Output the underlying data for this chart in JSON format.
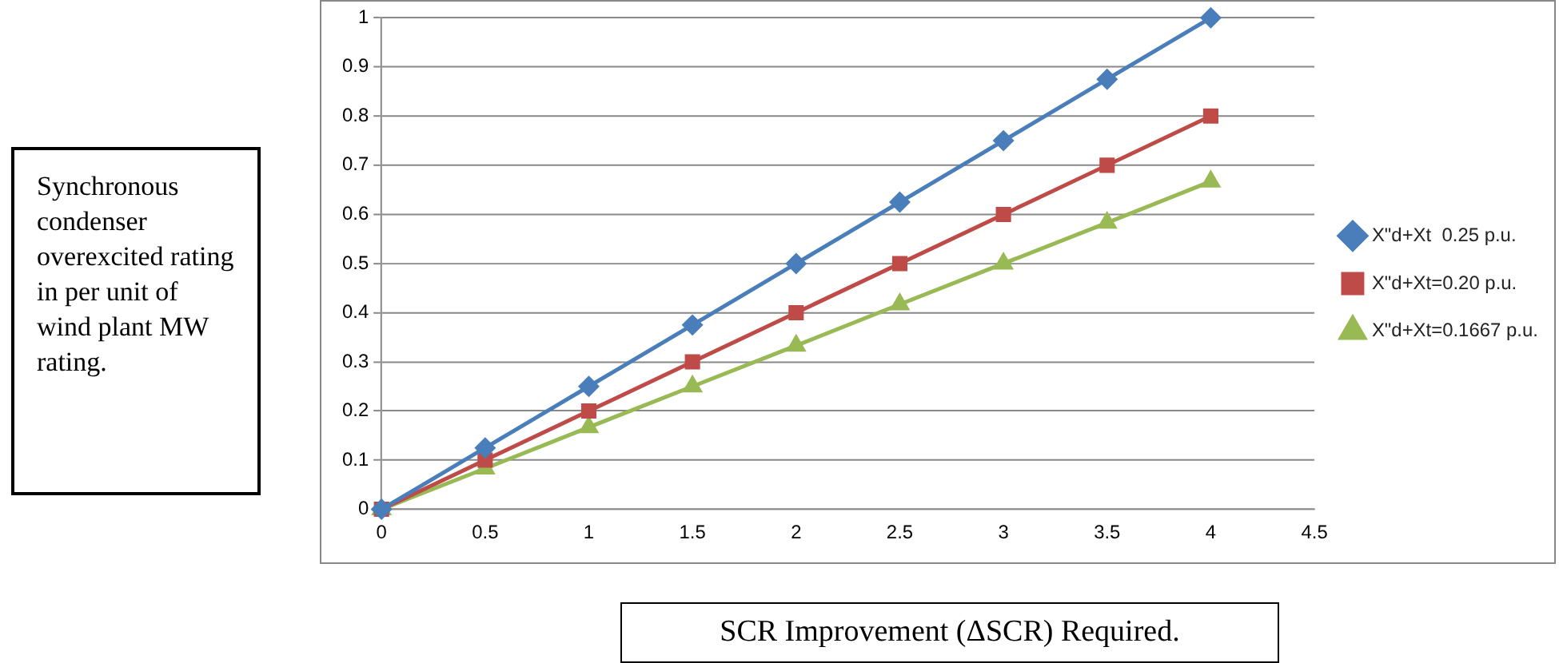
{
  "chart_data": {
    "type": "line",
    "xlabel": "SCR Improvement (ΔSCR) Required.",
    "ylabel": "Synchronous condenser overexcited rating in per unit of wind plant MW rating.",
    "x": [
      0,
      0.5,
      1,
      1.5,
      2,
      2.5,
      3,
      3.5,
      4
    ],
    "series": [
      {
        "name": "X\"d+Xt  0.25 p.u.",
        "color": "#4a7ebb",
        "marker": "diamond",
        "values": [
          0,
          0.125,
          0.25,
          0.375,
          0.5,
          0.625,
          0.75,
          0.875,
          1
        ]
      },
      {
        "name": "X\"d+Xt=0.20 p.u.",
        "color": "#be4b48",
        "marker": "square",
        "values": [
          0,
          0.1,
          0.2,
          0.3,
          0.4,
          0.5,
          0.6,
          0.7,
          0.8
        ]
      },
      {
        "name": "X\"d+Xt=0.1667 p.u.",
        "color": "#98b954",
        "marker": "triangle",
        "values": [
          0,
          0.083,
          0.167,
          0.25,
          0.333,
          0.417,
          0.5,
          0.583,
          0.667
        ]
      }
    ],
    "xlim": [
      0,
      4.5
    ],
    "xticks": [
      0,
      0.5,
      1,
      1.5,
      2,
      2.5,
      3,
      3.5,
      4,
      4.5
    ],
    "ylim": [
      0,
      1
    ],
    "yticks": [
      0,
      0.1,
      0.2,
      0.3,
      0.4,
      0.5,
      0.6,
      0.7,
      0.8,
      0.9,
      1
    ],
    "grid": "y",
    "legend": "right",
    "line_style": "solid"
  }
}
